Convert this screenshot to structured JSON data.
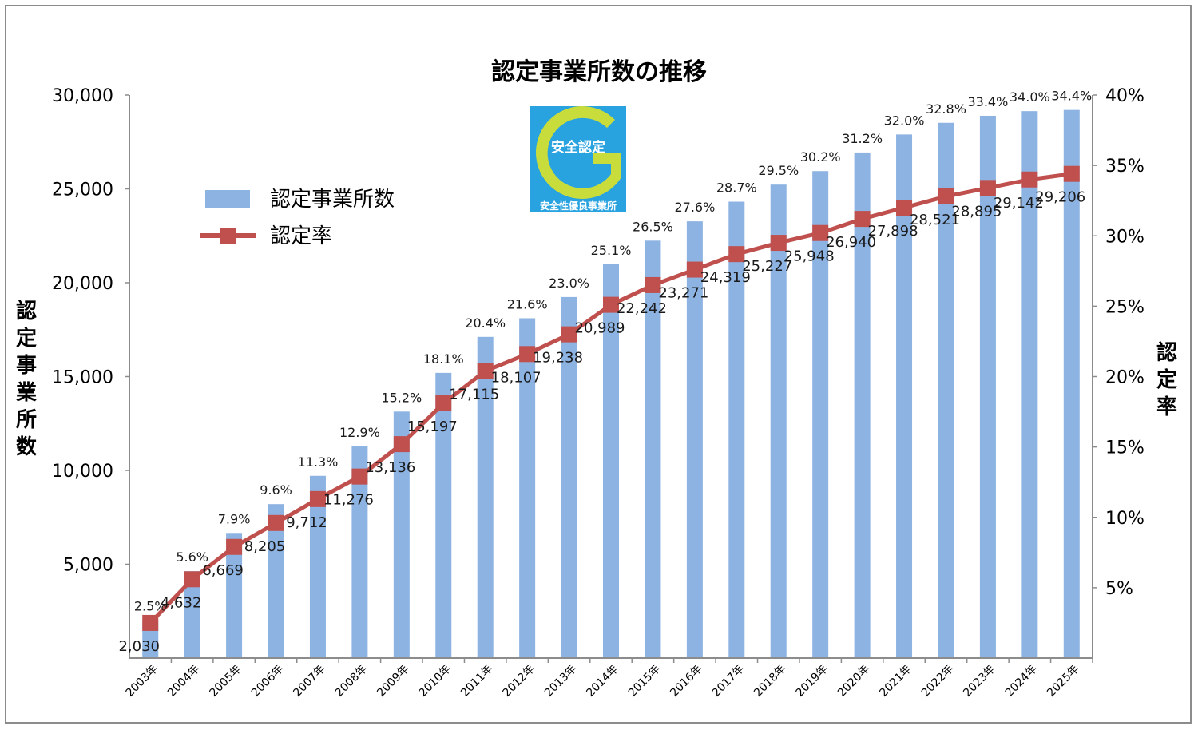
{
  "chart_data": {
    "type": "bar+line",
    "title": "認定事業所数の推移",
    "categories": [
      "2003年",
      "2004年",
      "2005年",
      "2006年",
      "2007年",
      "2008年",
      "2009年",
      "2010年",
      "2011年",
      "2012年",
      "2013年",
      "2014年",
      "2015年",
      "2016年",
      "2017年",
      "2018年",
      "2019年",
      "2020年",
      "2021年",
      "2022年",
      "2023年",
      "2024年",
      "2025年"
    ],
    "series": [
      {
        "name": "認定事業所数",
        "type": "bar",
        "axis": "left",
        "color": "#8db3e2",
        "values": [
          2030,
          4632,
          6669,
          8205,
          9712,
          11276,
          13136,
          15197,
          17115,
          18107,
          19238,
          20989,
          22242,
          23271,
          24319,
          25227,
          25948,
          26940,
          27898,
          28521,
          28895,
          29142,
          29206
        ],
        "labels": [
          "2,030",
          "4,632",
          "6,669",
          "8,205",
          "9,712",
          "11,276",
          "13,136",
          "15,197",
          "17,115",
          "18,107",
          "19,238",
          "20,989",
          "22,242",
          "23,271",
          "24,319",
          "25,227",
          "25,948",
          "26,940",
          "27,898",
          "28,521",
          "28,895",
          "29,142",
          "29,206"
        ]
      },
      {
        "name": "認定率",
        "type": "line",
        "axis": "right",
        "color": "#c0504d",
        "values": [
          2.5,
          5.6,
          7.9,
          9.6,
          11.3,
          12.9,
          15.2,
          18.1,
          20.4,
          21.6,
          23.0,
          25.1,
          26.5,
          27.6,
          28.7,
          29.5,
          30.2,
          31.2,
          32.0,
          32.8,
          33.4,
          34.0,
          34.4
        ],
        "labels": [
          "2.5%",
          "5.6%",
          "7.9%",
          "9.6%",
          "11.3%",
          "12.9%",
          "15.2%",
          "18.1%",
          "20.4%",
          "21.6%",
          "23.0%",
          "25.1%",
          "26.5%",
          "27.6%",
          "28.7%",
          "29.5%",
          "30.2%",
          "31.2%",
          "32.0%",
          "32.8%",
          "33.4%",
          "34.0%",
          "34.4%"
        ]
      }
    ],
    "y_left": {
      "label": "認定事業所数",
      "ylim": [
        0,
        30000
      ],
      "ticks": [
        "5,000",
        "10,000",
        "15,000",
        "20,000",
        "25,000",
        "30,000"
      ]
    },
    "y_right": {
      "label": "認定率",
      "ylim": [
        0,
        40
      ],
      "ticks": [
        "5%",
        "10%",
        "15%",
        "20%",
        "25%",
        "30%",
        "35%",
        "40%"
      ]
    },
    "grid": false,
    "legend": "upper-left"
  },
  "logo": {
    "main_text": "安全認定",
    "sub_text": "安全性優良事業所",
    "color_bg": "#29a3e0",
    "color_ring": "#c8dc3c"
  }
}
